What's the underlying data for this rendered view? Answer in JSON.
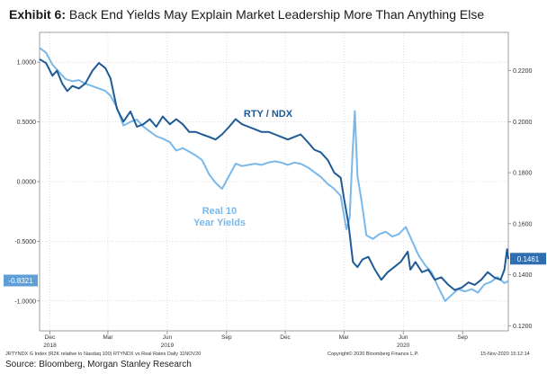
{
  "title": {
    "prefix": "Exhibit 6:",
    "text": "Back End Yields May Explain Market Leadership More Than Anything Else"
  },
  "source": "Source: Bloomberg, Morgan Stanley Research",
  "footer": {
    "left": "JRTYNDX G Index (R2K relative to Nasdaq 100) RTYNDX vs Real Rates  Daily 11NOV20",
    "center": "Copyright© 2020 Bloomberg Finance L.P.",
    "right": "15-Nov-2020 15:12:14"
  },
  "chart_data": {
    "type": "line",
    "grid": true,
    "x_axis": {
      "range": [
        "2018-11-15",
        "2020-11-11"
      ],
      "ticks": [
        {
          "date": "2018-12-01",
          "label": "Dec"
        },
        {
          "date": "2019-03-01",
          "label": "Mar"
        },
        {
          "date": "2019-06-01",
          "label": "Jun"
        },
        {
          "date": "2019-09-01",
          "label": "Sep"
        },
        {
          "date": "2019-12-01",
          "label": "Dec"
        },
        {
          "date": "2020-03-01",
          "label": "Mar"
        },
        {
          "date": "2020-06-01",
          "label": "Jun"
        },
        {
          "date": "2020-09-01",
          "label": "Sep"
        }
      ],
      "year_labels": [
        {
          "date": "2018-12-01",
          "label": "2018"
        },
        {
          "date": "2019-06-01",
          "label": "2019"
        },
        {
          "date": "2020-06-01",
          "label": "2020"
        }
      ]
    },
    "left_axis": {
      "range": [
        -1.25,
        1.25
      ],
      "ticks": [
        1.0,
        0.5,
        0.0,
        -0.5,
        -1.0
      ],
      "tick_labels": [
        "1.0000",
        "0.5000",
        "0.0000",
        "-0.5000",
        "-1.0000"
      ]
    },
    "right_axis": {
      "range": [
        0.118,
        0.235
      ],
      "ticks": [
        0.22,
        0.2,
        0.18,
        0.16,
        0.14,
        0.12
      ],
      "tick_labels": [
        "0.2200",
        "0.2000",
        "0.1800",
        "0.1600",
        "0.1400",
        "0.1200"
      ]
    },
    "series": [
      {
        "name": "RTY / NDX",
        "axis": "right",
        "color": "#1f5a96",
        "last_value_label": "0.1461",
        "points": [
          [
            "2018-11-15",
            0.2245
          ],
          [
            "2018-11-25",
            0.223
          ],
          [
            "2018-12-05",
            0.218
          ],
          [
            "2018-12-12",
            0.22
          ],
          [
            "2018-12-20",
            0.215
          ],
          [
            "2018-12-28",
            0.212
          ],
          [
            "2019-01-05",
            0.214
          ],
          [
            "2019-01-15",
            0.213
          ],
          [
            "2019-01-25",
            0.215
          ],
          [
            "2019-02-05",
            0.22
          ],
          [
            "2019-02-15",
            0.223
          ],
          [
            "2019-02-25",
            0.221
          ],
          [
            "2019-03-05",
            0.217
          ],
          [
            "2019-03-15",
            0.205
          ],
          [
            "2019-03-25",
            0.2
          ],
          [
            "2019-04-05",
            0.204
          ],
          [
            "2019-04-15",
            0.198
          ],
          [
            "2019-04-25",
            0.199
          ],
          [
            "2019-05-05",
            0.201
          ],
          [
            "2019-05-15",
            0.198
          ],
          [
            "2019-05-25",
            0.202
          ],
          [
            "2019-06-05",
            0.199
          ],
          [
            "2019-06-15",
            0.201
          ],
          [
            "2019-06-25",
            0.199
          ],
          [
            "2019-07-05",
            0.196
          ],
          [
            "2019-07-15",
            0.196
          ],
          [
            "2019-07-25",
            0.195
          ],
          [
            "2019-08-05",
            0.194
          ],
          [
            "2019-08-15",
            0.193
          ],
          [
            "2019-08-25",
            0.195
          ],
          [
            "2019-09-05",
            0.198
          ],
          [
            "2019-09-15",
            0.201
          ],
          [
            "2019-09-25",
            0.199
          ],
          [
            "2019-10-05",
            0.198
          ],
          [
            "2019-10-15",
            0.197
          ],
          [
            "2019-10-25",
            0.196
          ],
          [
            "2019-11-05",
            0.196
          ],
          [
            "2019-11-15",
            0.195
          ],
          [
            "2019-11-25",
            0.194
          ],
          [
            "2019-12-05",
            0.193
          ],
          [
            "2019-12-15",
            0.194
          ],
          [
            "2019-12-25",
            0.195
          ],
          [
            "2020-01-05",
            0.192
          ],
          [
            "2020-01-15",
            0.189
          ],
          [
            "2020-01-25",
            0.188
          ],
          [
            "2020-02-05",
            0.185
          ],
          [
            "2020-02-15",
            0.18
          ],
          [
            "2020-02-25",
            0.178
          ],
          [
            "2020-03-01",
            0.17
          ],
          [
            "2020-03-08",
            0.16
          ],
          [
            "2020-03-15",
            0.145
          ],
          [
            "2020-03-22",
            0.143
          ],
          [
            "2020-03-30",
            0.146
          ],
          [
            "2020-04-08",
            0.147
          ],
          [
            "2020-04-18",
            0.142
          ],
          [
            "2020-04-28",
            0.138
          ],
          [
            "2020-05-08",
            0.141
          ],
          [
            "2020-05-18",
            0.143
          ],
          [
            "2020-05-28",
            0.145
          ],
          [
            "2020-06-08",
            0.149
          ],
          [
            "2020-06-12",
            0.142
          ],
          [
            "2020-06-20",
            0.145
          ],
          [
            "2020-06-30",
            0.141
          ],
          [
            "2020-07-10",
            0.142
          ],
          [
            "2020-07-20",
            0.138
          ],
          [
            "2020-07-30",
            0.139
          ],
          [
            "2020-08-10",
            0.136
          ],
          [
            "2020-08-20",
            0.134
          ],
          [
            "2020-08-31",
            0.135
          ],
          [
            "2020-09-10",
            0.137
          ],
          [
            "2020-09-20",
            0.136
          ],
          [
            "2020-09-30",
            0.138
          ],
          [
            "2020-10-10",
            0.141
          ],
          [
            "2020-10-20",
            0.139
          ],
          [
            "2020-10-30",
            0.138
          ],
          [
            "2020-11-05",
            0.142
          ],
          [
            "2020-11-09",
            0.15
          ],
          [
            "2020-11-11",
            0.1461
          ]
        ]
      },
      {
        "name": "Real 10 Year Yields",
        "axis": "left",
        "color": "#7ab8ea",
        "last_value_label": "-0.8321",
        "points": [
          [
            "2018-11-15",
            1.12
          ],
          [
            "2018-11-25",
            1.08
          ],
          [
            "2018-12-05",
            0.98
          ],
          [
            "2018-12-15",
            0.92
          ],
          [
            "2018-12-25",
            0.86
          ],
          [
            "2019-01-05",
            0.84
          ],
          [
            "2019-01-15",
            0.85
          ],
          [
            "2019-01-25",
            0.82
          ],
          [
            "2019-02-05",
            0.8
          ],
          [
            "2019-02-15",
            0.78
          ],
          [
            "2019-02-25",
            0.76
          ],
          [
            "2019-03-05",
            0.72
          ],
          [
            "2019-03-15",
            0.62
          ],
          [
            "2019-03-25",
            0.47
          ],
          [
            "2019-04-05",
            0.5
          ],
          [
            "2019-04-15",
            0.52
          ],
          [
            "2019-04-25",
            0.46
          ],
          [
            "2019-05-05",
            0.42
          ],
          [
            "2019-05-15",
            0.38
          ],
          [
            "2019-05-25",
            0.36
          ],
          [
            "2019-06-05",
            0.33
          ],
          [
            "2019-06-15",
            0.26
          ],
          [
            "2019-06-25",
            0.28
          ],
          [
            "2019-07-05",
            0.25
          ],
          [
            "2019-07-15",
            0.22
          ],
          [
            "2019-07-25",
            0.18
          ],
          [
            "2019-08-05",
            0.06
          ],
          [
            "2019-08-15",
            -0.01
          ],
          [
            "2019-08-25",
            -0.06
          ],
          [
            "2019-09-05",
            0.05
          ],
          [
            "2019-09-15",
            0.15
          ],
          [
            "2019-09-25",
            0.13
          ],
          [
            "2019-10-05",
            0.14
          ],
          [
            "2019-10-15",
            0.15
          ],
          [
            "2019-10-25",
            0.14
          ],
          [
            "2019-11-05",
            0.16
          ],
          [
            "2019-11-15",
            0.17
          ],
          [
            "2019-11-25",
            0.16
          ],
          [
            "2019-12-05",
            0.14
          ],
          [
            "2019-12-15",
            0.16
          ],
          [
            "2019-12-25",
            0.15
          ],
          [
            "2020-01-05",
            0.12
          ],
          [
            "2020-01-15",
            0.08
          ],
          [
            "2020-01-25",
            0.04
          ],
          [
            "2020-02-05",
            -0.02
          ],
          [
            "2020-02-15",
            -0.06
          ],
          [
            "2020-02-25",
            -0.12
          ],
          [
            "2020-03-05",
            -0.4
          ],
          [
            "2020-03-10",
            -0.3
          ],
          [
            "2020-03-14",
            0.2
          ],
          [
            "2020-03-18",
            0.59
          ],
          [
            "2020-03-22",
            0.05
          ],
          [
            "2020-03-28",
            -0.15
          ],
          [
            "2020-04-05",
            -0.45
          ],
          [
            "2020-04-15",
            -0.48
          ],
          [
            "2020-04-25",
            -0.44
          ],
          [
            "2020-05-05",
            -0.42
          ],
          [
            "2020-05-15",
            -0.46
          ],
          [
            "2020-05-25",
            -0.44
          ],
          [
            "2020-06-05",
            -0.38
          ],
          [
            "2020-06-15",
            -0.5
          ],
          [
            "2020-06-25",
            -0.62
          ],
          [
            "2020-07-05",
            -0.7
          ],
          [
            "2020-07-15",
            -0.76
          ],
          [
            "2020-07-25",
            -0.88
          ],
          [
            "2020-08-05",
            -1.0
          ],
          [
            "2020-08-15",
            -0.95
          ],
          [
            "2020-08-25",
            -0.9
          ],
          [
            "2020-09-05",
            -0.92
          ],
          [
            "2020-09-15",
            -0.9
          ],
          [
            "2020-09-25",
            -0.93
          ],
          [
            "2020-10-05",
            -0.86
          ],
          [
            "2020-10-15",
            -0.84
          ],
          [
            "2020-10-25",
            -0.8
          ],
          [
            "2020-11-05",
            -0.85
          ],
          [
            "2020-11-11",
            -0.8321
          ]
        ]
      }
    ]
  }
}
